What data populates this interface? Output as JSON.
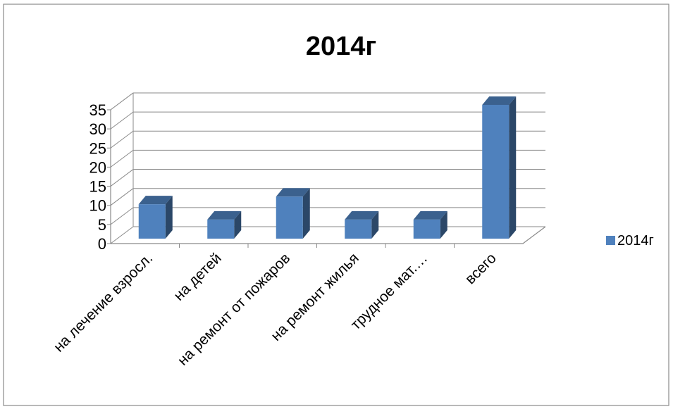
{
  "chart_data": {
    "type": "bar",
    "title": "2014г",
    "xlabel": "",
    "ylabel": "",
    "categories": [
      "на лечение взросл.",
      "на детей",
      "на ремонт от пожаров",
      "на ремонт жилья",
      "трудное мат.…",
      "всего"
    ],
    "series": [
      {
        "name": "2014г",
        "values": [
          9,
          5,
          11,
          5,
          5,
          35
        ],
        "color": "#4F81BD"
      }
    ],
    "ylim": [
      0,
      35
    ],
    "yticks": [
      0,
      5,
      10,
      15,
      20,
      25,
      30,
      35
    ],
    "grid": true,
    "legend": "right",
    "style": "3d-column"
  }
}
